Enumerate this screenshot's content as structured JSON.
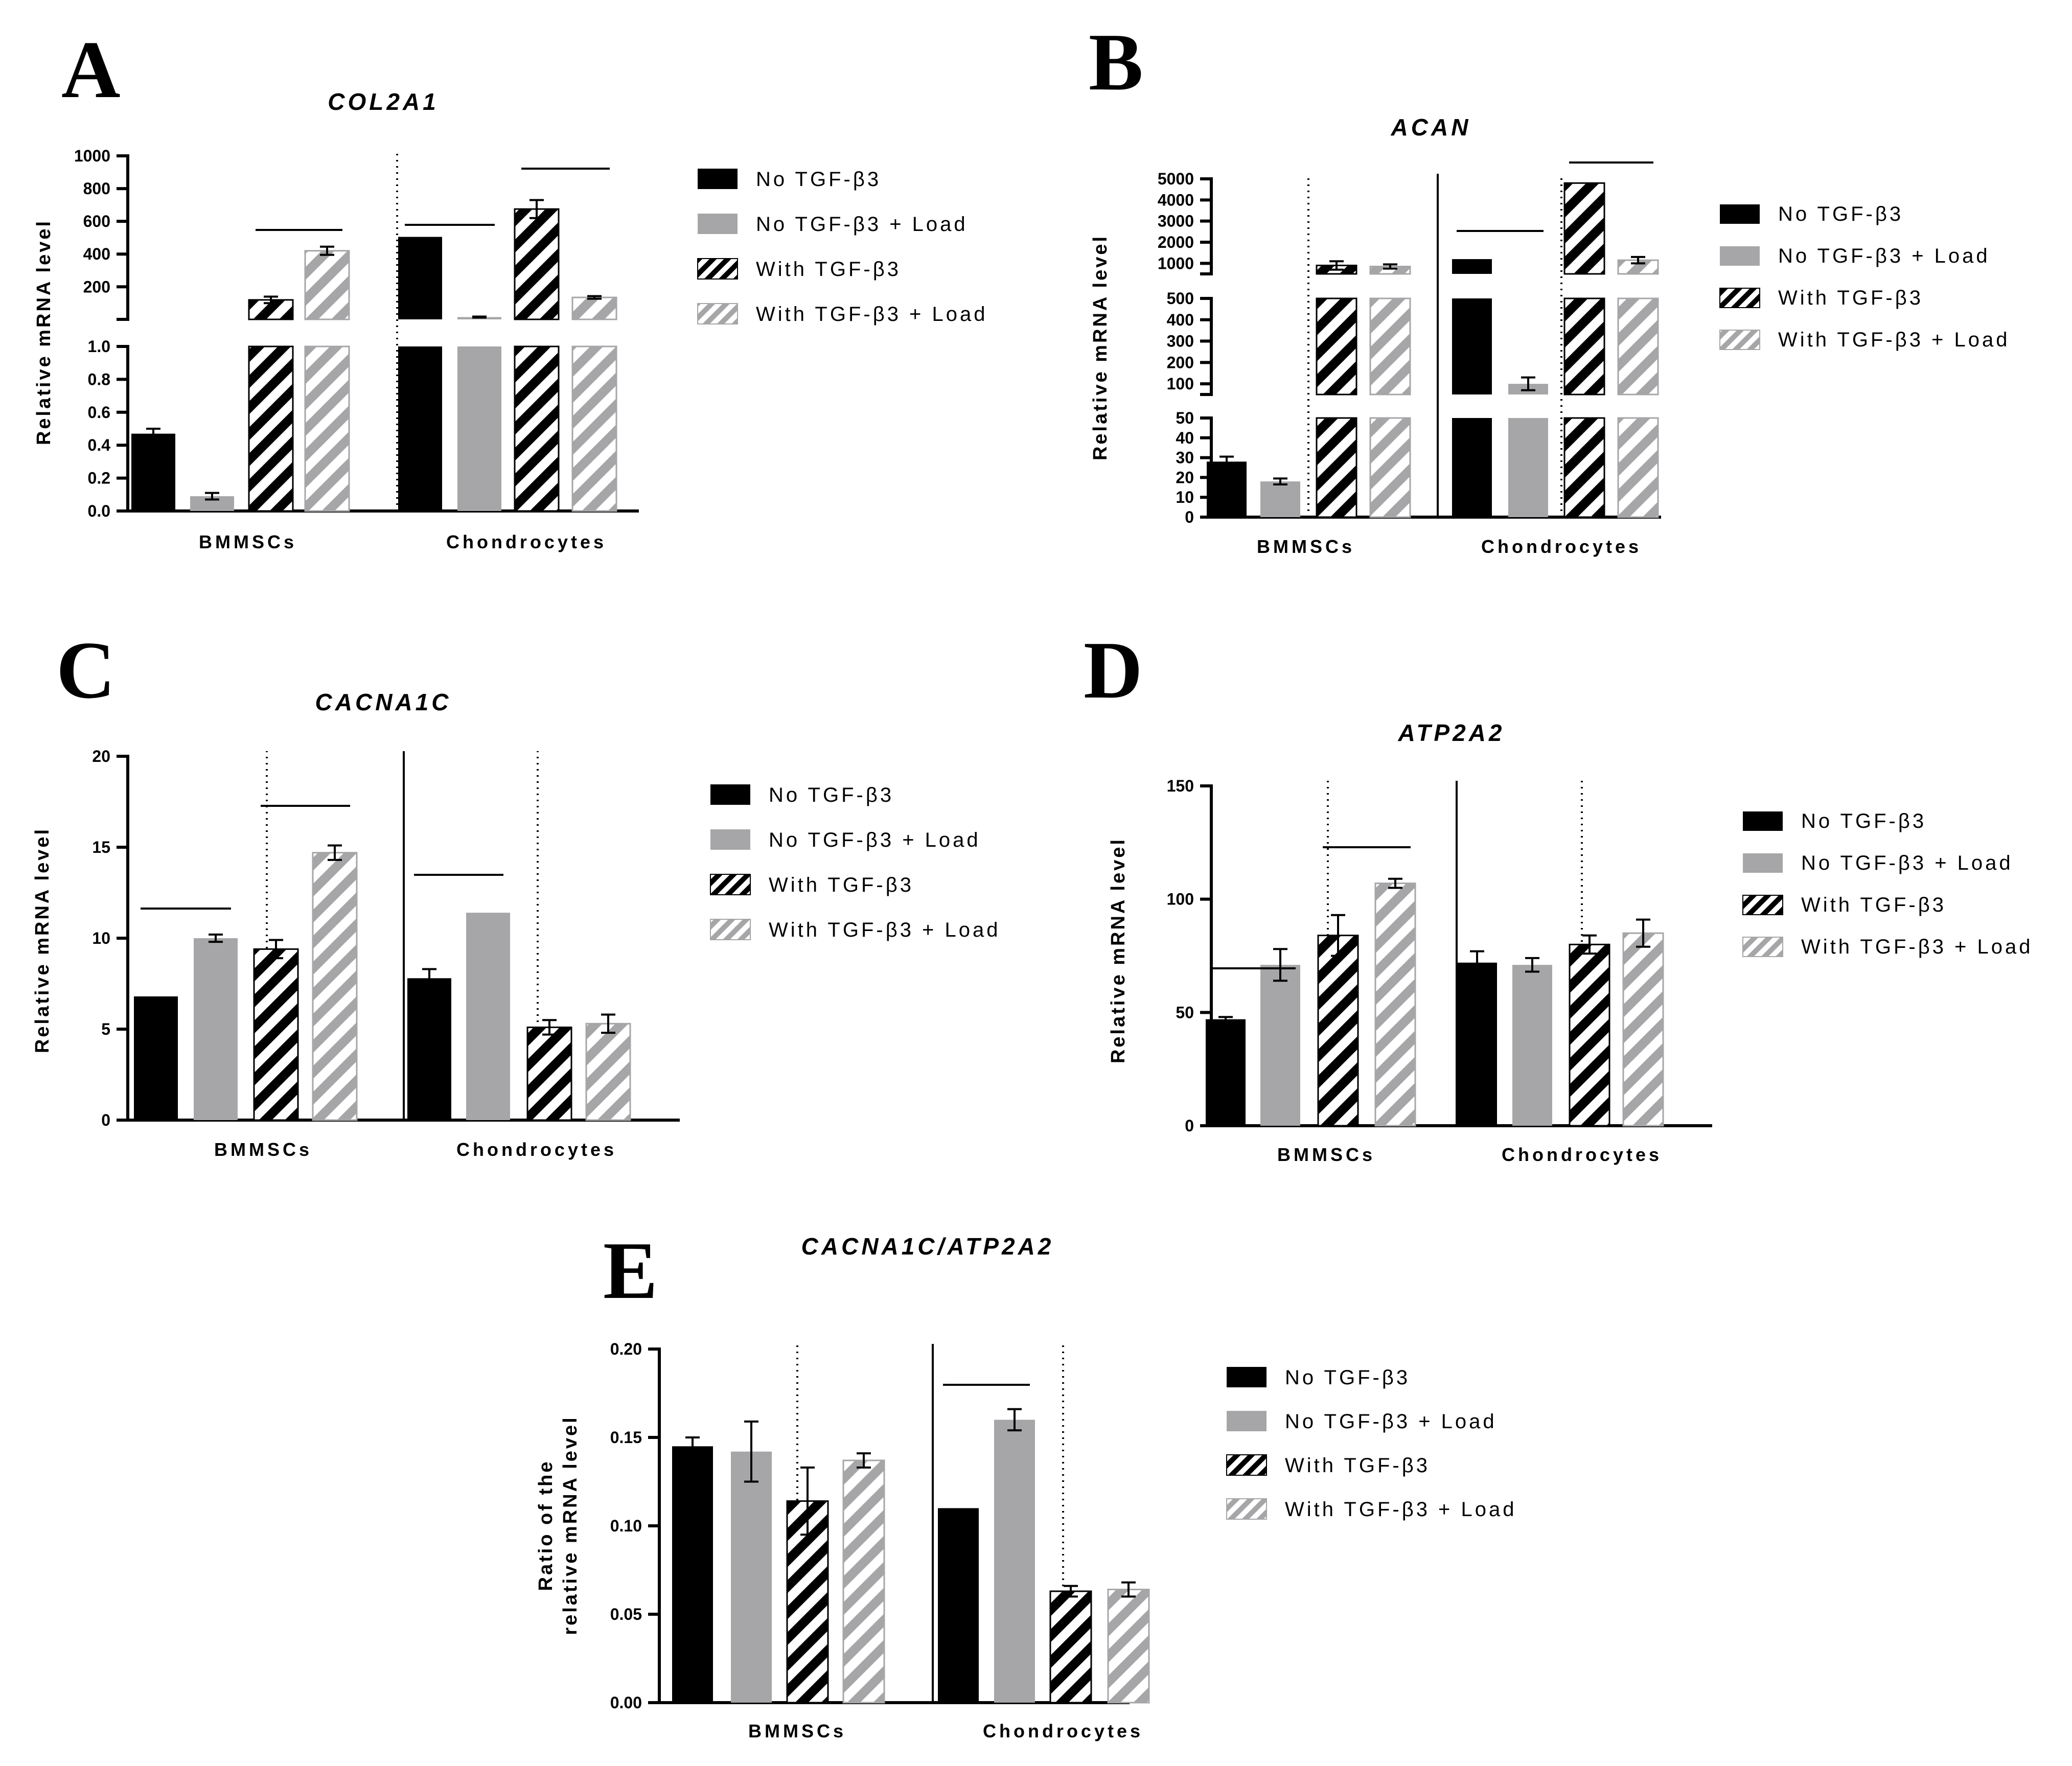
{
  "legend": {
    "labels": [
      "No TGF-β3",
      "No TGF-β3 + Load",
      "With TGF-β3",
      "With TGF-β3 + Load"
    ]
  },
  "colors": {
    "no_tgf": "#000000",
    "no_tgf_load": "#a6a6a8",
    "with_tgf_bg": "#ffffff",
    "with_tgf_stripe": "#000000",
    "with_tgf_load_bg": "#ffffff",
    "with_tgf_load_stripe": "#a6a6a8"
  },
  "chart_data": [
    {
      "panel": "A",
      "type": "bar",
      "title": "COL2A1",
      "ylabel": "Relative mRNA level",
      "categories": [
        "BMMSCs",
        "Chondrocytes"
      ],
      "y_axis": "broken",
      "segments": [
        {
          "range": [
            0,
            1.0
          ],
          "ticks": [
            "0.0",
            "0.2",
            "0.4",
            "0.6",
            "0.8",
            "1.0"
          ]
        },
        {
          "range": [
            1.0,
            1000
          ],
          "ticks": [
            "200",
            "400",
            "600",
            "800",
            "1000"
          ]
        }
      ],
      "series": [
        {
          "name": "No TGF-β3",
          "values": [
            0.47,
            505
          ],
          "errors": [
            0.03,
            0
          ]
        },
        {
          "name": "No TGF-β3 + Load",
          "values": [
            0.09,
            15
          ],
          "errors": [
            0.02,
            3
          ]
        },
        {
          "name": "With TGF-β3",
          "values": [
            120,
            675
          ],
          "errors": [
            20,
            55
          ]
        },
        {
          "name": "With TGF-β3 + Load",
          "values": [
            420,
            135
          ],
          "errors": [
            25,
            8
          ]
        }
      ],
      "significance": [
        {
          "group": 0,
          "pair": "with"
        },
        {
          "group": 1,
          "pair": "no"
        },
        {
          "group": 1,
          "pair": "with"
        }
      ]
    },
    {
      "panel": "B",
      "type": "bar",
      "title": "ACAN",
      "ylabel": "Relative mRNA level",
      "categories": [
        "BMMSCs",
        "Chondrocytes"
      ],
      "y_axis": "broken",
      "segments": [
        {
          "range": [
            0,
            50
          ],
          "ticks": [
            "0",
            "10",
            "20",
            "30",
            "40",
            "50"
          ]
        },
        {
          "range": [
            50,
            500
          ],
          "ticks": [
            "100",
            "200",
            "300",
            "400",
            "500"
          ]
        },
        {
          "range": [
            500,
            5000
          ],
          "ticks": [
            "1000",
            "2000",
            "3000",
            "4000",
            "5000"
          ]
        }
      ],
      "series": [
        {
          "name": "No TGF-β3",
          "values": [
            28,
            1200
          ],
          "errors": [
            2.5,
            0
          ]
        },
        {
          "name": "No TGF-β3 + Load",
          "values": [
            18,
            100
          ],
          "errors": [
            1.5,
            30
          ]
        },
        {
          "name": "With TGF-β3",
          "values": [
            900,
            4800
          ],
          "errors": [
            200,
            0
          ]
        },
        {
          "name": "With TGF-β3 + Load",
          "values": [
            850,
            1150
          ],
          "errors": [
            100,
            150
          ]
        }
      ],
      "significance": [
        {
          "group": 1,
          "pair": "no"
        },
        {
          "group": 1,
          "pair": "with"
        }
      ]
    },
    {
      "panel": "C",
      "type": "bar",
      "title": "CACNA1C",
      "ylabel": "Relative mRNA level",
      "categories": [
        "BMMSCs",
        "Chondrocytes"
      ],
      "ylim": [
        0,
        20
      ],
      "yticks": [
        "0",
        "5",
        "10",
        "15",
        "20"
      ],
      "series": [
        {
          "name": "No TGF-β3",
          "values": [
            6.8,
            7.8
          ],
          "errors": [
            0,
            0.5
          ]
        },
        {
          "name": "No TGF-β3 + Load",
          "values": [
            10.0,
            11.4
          ],
          "errors": [
            0.2,
            0
          ]
        },
        {
          "name": "With TGF-β3",
          "values": [
            9.4,
            5.1
          ],
          "errors": [
            0.5,
            0.4
          ]
        },
        {
          "name": "With TGF-β3 + Load",
          "values": [
            14.7,
            5.3
          ],
          "errors": [
            0.4,
            0.5
          ]
        }
      ],
      "significance": [
        {
          "group": 0,
          "pair": "no"
        },
        {
          "group": 0,
          "pair": "with"
        },
        {
          "group": 1,
          "pair": "no"
        }
      ]
    },
    {
      "panel": "D",
      "type": "bar",
      "title": "ATP2A2",
      "ylabel": "Relative mRNA level",
      "categories": [
        "BMMSCs",
        "Chondrocytes"
      ],
      "ylim": [
        0,
        150
      ],
      "yticks": [
        "0",
        "50",
        "100",
        "150"
      ],
      "series": [
        {
          "name": "No TGF-β3",
          "values": [
            47,
            72
          ],
          "errors": [
            1,
            5
          ]
        },
        {
          "name": "No TGF-β3 + Load",
          "values": [
            71,
            71
          ],
          "errors": [
            7,
            3
          ]
        },
        {
          "name": "With TGF-β3",
          "values": [
            84,
            80
          ],
          "errors": [
            9,
            4
          ]
        },
        {
          "name": "With TGF-β3 + Load",
          "values": [
            107,
            85
          ],
          "errors": [
            2,
            6
          ]
        }
      ],
      "significance": [
        {
          "group": 0,
          "pair": "no"
        },
        {
          "group": 0,
          "pair": "with"
        }
      ]
    },
    {
      "panel": "E",
      "type": "bar",
      "title": "CACNA1C/ATP2A2",
      "ylabel": [
        "Ratio of the",
        "relative mRNA level"
      ],
      "categories": [
        "BMMSCs",
        "Chondrocytes"
      ],
      "ylim": [
        0,
        0.2
      ],
      "yticks": [
        "0.00",
        "0.05",
        "0.10",
        "0.15",
        "0.20"
      ],
      "series": [
        {
          "name": "No TGF-β3",
          "values": [
            0.145,
            0.11
          ],
          "errors": [
            0.005,
            0
          ]
        },
        {
          "name": "No TGF-β3 + Load",
          "values": [
            0.142,
            0.16
          ],
          "errors": [
            0.017,
            0.006
          ]
        },
        {
          "name": "With TGF-β3",
          "values": [
            0.114,
            0.063
          ],
          "errors": [
            0.019,
            0.003
          ]
        },
        {
          "name": "With TGF-β3 + Load",
          "values": [
            0.137,
            0.064
          ],
          "errors": [
            0.004,
            0.004
          ]
        }
      ],
      "significance": [
        {
          "group": 1,
          "pair": "no"
        }
      ]
    }
  ]
}
